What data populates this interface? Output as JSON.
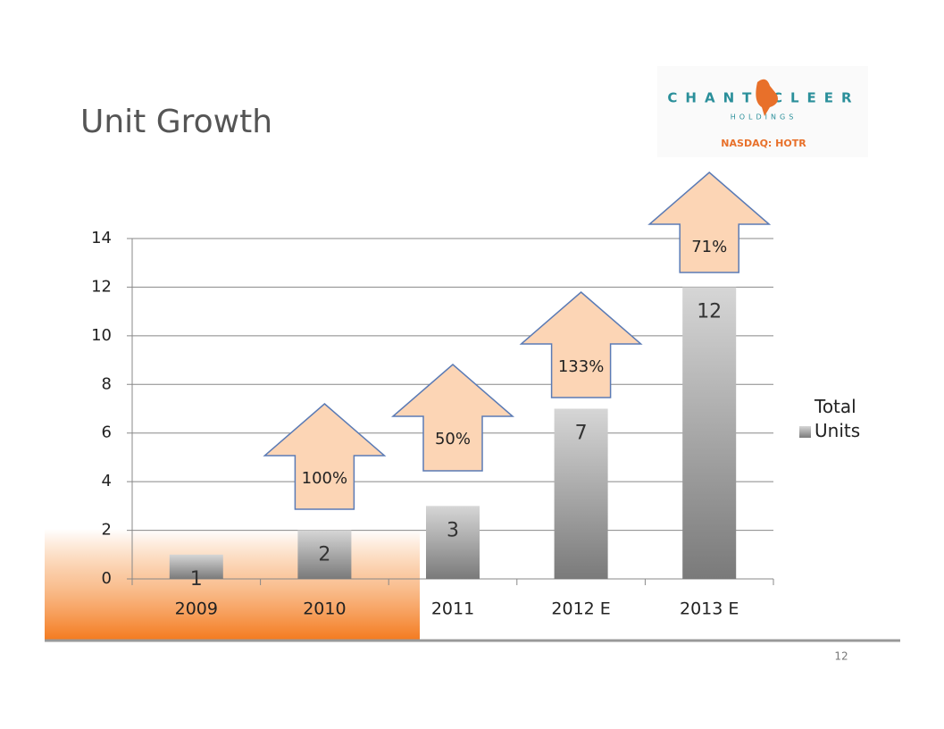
{
  "title": "Unit Growth",
  "logo": {
    "name": "CHANTICLEER",
    "subtitle": "HOLDINGS",
    "ticker": "NASDAQ: HOTR"
  },
  "page_number": "12",
  "chart_data": {
    "type": "bar",
    "categories": [
      "2009",
      "2010",
      "2011",
      "2012 E",
      "2013 E"
    ],
    "series": [
      {
        "name": "Total Units",
        "color": "#8c8c8c",
        "values": [
          1,
          2,
          3,
          7,
          12
        ]
      }
    ],
    "annotations": [
      "100%",
      "50%",
      "133%",
      "71%"
    ],
    "ylim": [
      0,
      14
    ],
    "yticks": [
      0,
      2,
      4,
      6,
      8,
      10,
      12,
      14
    ],
    "grid": true,
    "legend": "right"
  }
}
